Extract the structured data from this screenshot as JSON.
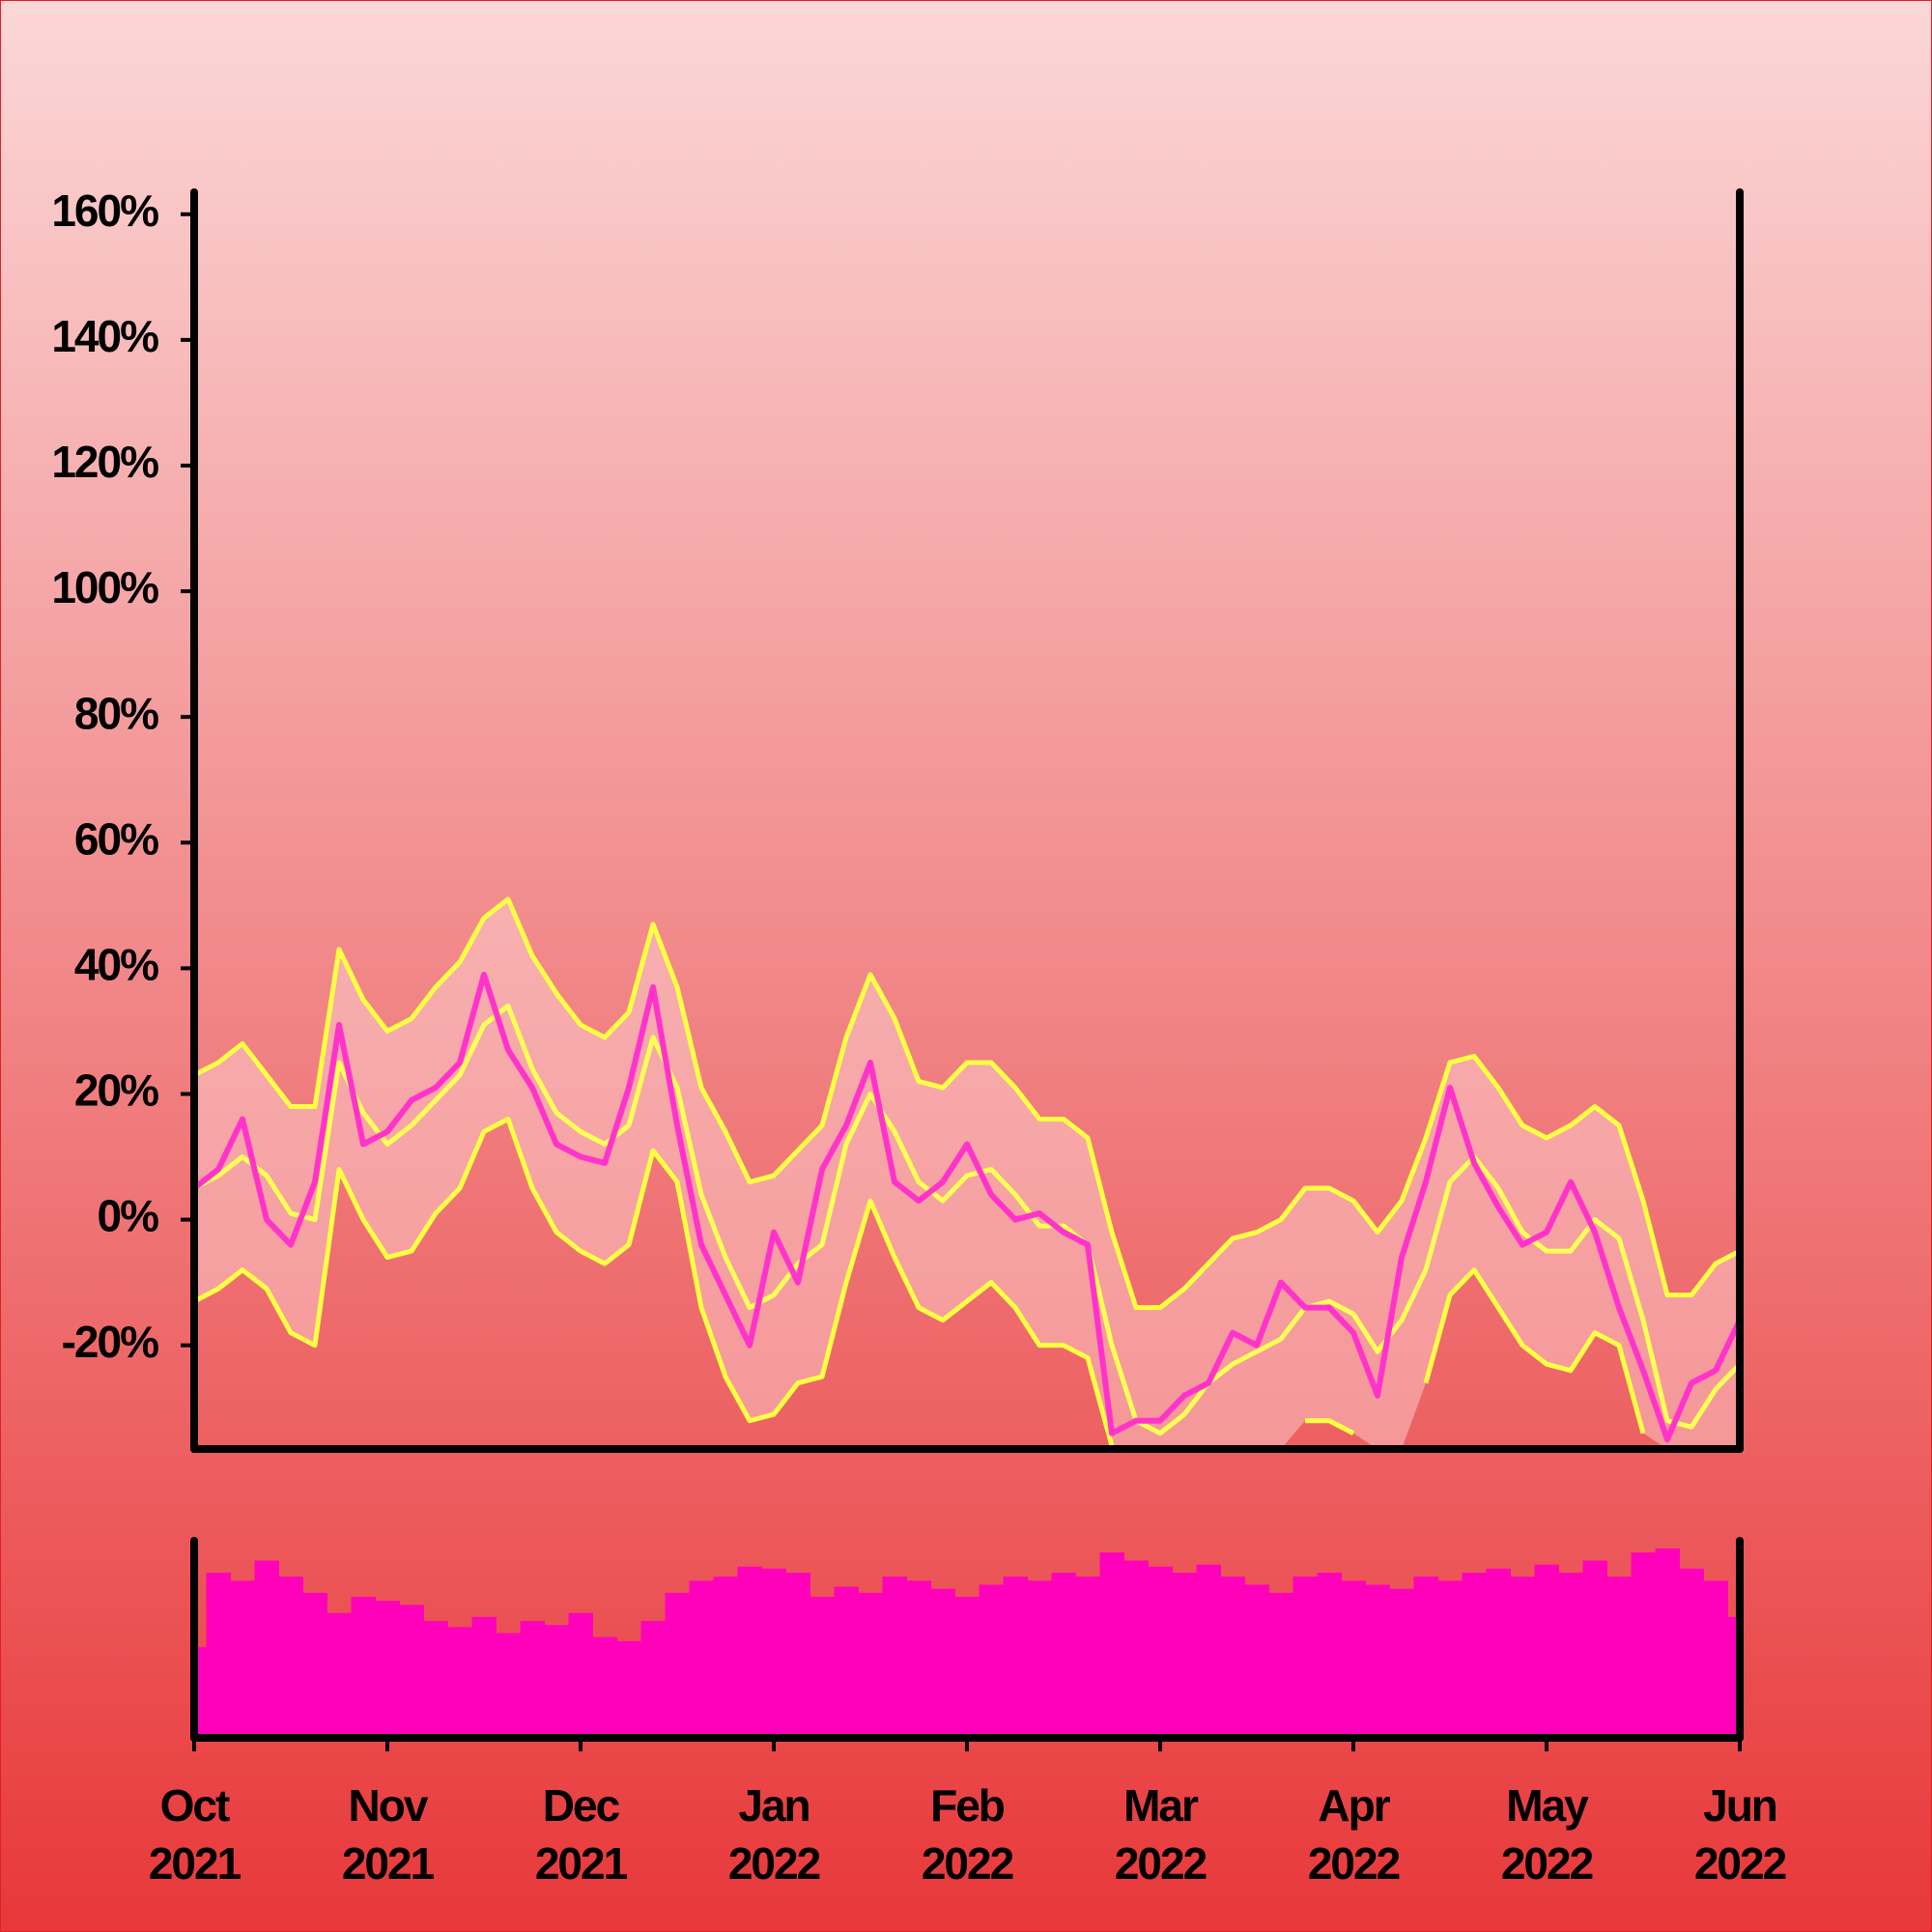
{
  "chart_data": {
    "type": "line",
    "categories": [
      "Oct 2021",
      null,
      null,
      null,
      null,
      null,
      null,
      null,
      "Nov 2021",
      null,
      null,
      null,
      null,
      null,
      null,
      null,
      "Dec 2021",
      null,
      null,
      null,
      null,
      null,
      null,
      null,
      "Jan 2022",
      null,
      null,
      null,
      null,
      null,
      null,
      null,
      "Feb 2022",
      null,
      null,
      null,
      null,
      null,
      null,
      null,
      "Mar 2022",
      null,
      null,
      null,
      null,
      null,
      null,
      null,
      "Apr 2022",
      null,
      null,
      null,
      null,
      null,
      null,
      null,
      "May 2022",
      null,
      null,
      null,
      null,
      null,
      null,
      null,
      "Jun 2022"
    ],
    "ylim": [
      -36.5,
      163.5
    ],
    "yticks": [
      {
        "value": -20,
        "label": "-20%"
      },
      {
        "value": 0,
        "label": "0%"
      },
      {
        "value": 20,
        "label": "20%"
      },
      {
        "value": 40,
        "label": "40%"
      },
      {
        "value": 60,
        "label": "60%"
      },
      {
        "value": 80,
        "label": "80%"
      },
      {
        "value": 100,
        "label": "100%"
      },
      {
        "value": 120,
        "label": "120%"
      },
      {
        "value": 140,
        "label": "140%"
      },
      {
        "value": 160,
        "label": "160%"
      }
    ],
    "series": [
      {
        "color": "#ffff44",
        "fill": "rgba(255,220,220,0.45)",
        "values": [
          23,
          25,
          28,
          23,
          18,
          18,
          43,
          35,
          30,
          32,
          37,
          41,
          48,
          51,
          42,
          36,
          31,
          29,
          33,
          47,
          37,
          21,
          14,
          6,
          7,
          11,
          15,
          29,
          39,
          32,
          22,
          21,
          25,
          25,
          21,
          16,
          16,
          13,
          -2,
          -14,
          -14,
          -11,
          -7,
          -3,
          -2,
          0,
          5,
          5,
          3,
          -2,
          3,
          13,
          25,
          26,
          21,
          15,
          13,
          15,
          18,
          15,
          3,
          -12,
          -12,
          -7,
          -5
        ]
      },
      {
        "color": "#ffff55",
        "values": [
          5,
          7,
          10,
          7,
          1,
          0,
          25,
          17,
          12,
          15,
          19,
          23,
          31,
          34,
          24,
          17,
          14,
          12,
          15,
          29,
          21,
          4,
          -6,
          -14,
          -12,
          -7,
          -4,
          12,
          20,
          14,
          6,
          3,
          7,
          8,
          4,
          -1,
          -1,
          -4,
          -20,
          -32,
          -34,
          -31,
          -26,
          -23,
          -21,
          -19,
          -14,
          -13,
          -15,
          -21,
          -16,
          -8,
          6,
          10,
          5,
          -2,
          -5,
          -5,
          0,
          -3,
          -16,
          -32,
          -33,
          -27,
          -23
        ]
      },
      {
        "color": "#ffff44",
        "values": [
          -13,
          -11,
          -8,
          -11,
          -18,
          -20,
          8,
          0,
          -6,
          -5,
          1,
          5,
          14,
          16,
          5,
          -2,
          -5,
          -7,
          -4,
          11,
          6,
          -14,
          -25,
          -32,
          -31,
          -26,
          -25,
          -10,
          3,
          -6,
          -14,
          -16,
          -13,
          -10,
          -14,
          -20,
          -20,
          -22,
          -36,
          null,
          null,
          null,
          null,
          null,
          null,
          null,
          -32,
          -32,
          -34,
          null,
          null,
          -26,
          -12,
          -8,
          -14,
          -20,
          -23,
          -24,
          -18,
          -20,
          -34,
          null,
          null,
          null,
          null
        ]
      },
      {
        "color": "#ff33cc",
        "values": [
          5,
          8,
          16,
          0,
          -4,
          6,
          31,
          12,
          14,
          19,
          21,
          25,
          39,
          27,
          21,
          12,
          10,
          9,
          21,
          37,
          15,
          -4,
          -12,
          -20,
          -2,
          -10,
          8,
          15,
          25,
          6,
          3,
          6,
          12,
          4,
          0,
          1,
          -2,
          -4,
          -34,
          -32,
          -32,
          -28,
          -26,
          -18,
          -20,
          -10,
          -14,
          -14,
          -18,
          -28,
          -6,
          6,
          21,
          9,
          2,
          -4,
          -2,
          6,
          -2,
          -14,
          -24,
          -35,
          -26,
          -24,
          -16
        ]
      }
    ],
    "volume": {
      "color": "#ff00bb",
      "values": [
        45,
        82,
        78,
        88,
        80,
        72,
        62,
        70,
        68,
        66,
        58,
        55,
        60,
        52,
        58,
        56,
        62,
        50,
        48,
        58,
        72,
        78,
        80,
        85,
        84,
        82,
        70,
        75,
        72,
        80,
        78,
        74,
        70,
        76,
        80,
        78,
        82,
        80,
        92,
        88,
        85,
        82,
        86,
        80,
        76,
        72,
        80,
        82,
        78,
        76,
        74,
        80,
        78,
        82,
        84,
        80,
        86,
        82,
        88,
        80,
        92,
        94,
        84,
        78,
        60
      ]
    }
  }
}
